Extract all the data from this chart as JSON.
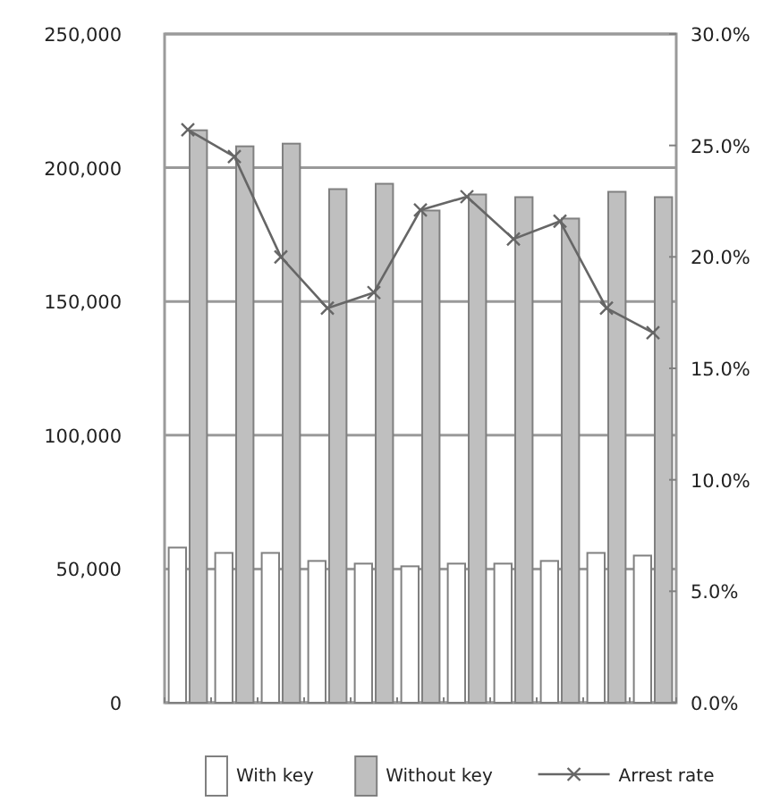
{
  "chart_data": {
    "type": "bar",
    "categories": [
      null,
      null,
      null,
      null,
      null,
      null,
      null,
      null,
      null,
      null,
      null
    ],
    "series": [
      {
        "name": "With key",
        "color": "#ffffff",
        "values": [
          58000,
          56000,
          56000,
          53000,
          52000,
          51000,
          52000,
          52000,
          53000,
          56000,
          55000
        ]
      },
      {
        "name": "Without key",
        "color": "#bfbfbf",
        "values": [
          214000,
          208000,
          209000,
          192000,
          194000,
          184000,
          190000,
          189000,
          181000,
          191000,
          189000
        ]
      },
      {
        "name": "Arrest rate",
        "type": "line",
        "axis": "y2",
        "color": "#666666",
        "marker": "cross",
        "values": [
          25.7,
          24.5,
          20.0,
          17.7,
          18.4,
          22.1,
          22.7,
          20.8,
          21.6,
          17.7,
          16.6
        ]
      }
    ],
    "ylim": [
      0,
      250000
    ],
    "yticks": [
      {
        "value": 0,
        "label": "0"
      },
      {
        "value": 50000,
        "label": "50,000"
      },
      {
        "value": 100000,
        "label": "100,000"
      },
      {
        "value": 150000,
        "label": "150,000"
      },
      {
        "value": 200000,
        "label": "200,000"
      },
      {
        "value": 250000,
        "label": "250,000"
      }
    ],
    "y2lim": [
      0,
      30
    ],
    "y2ticks": [
      {
        "value": 0,
        "label": "0.0%"
      },
      {
        "value": 5,
        "label": "5.0%"
      },
      {
        "value": 10,
        "label": "10.0%"
      },
      {
        "value": 15,
        "label": "15.0%"
      },
      {
        "value": 20,
        "label": "20.0%"
      },
      {
        "value": 25,
        "label": "25.0%"
      },
      {
        "value": 30,
        "label": "30.0%"
      }
    ],
    "grid": "y",
    "legend": "bottom"
  }
}
